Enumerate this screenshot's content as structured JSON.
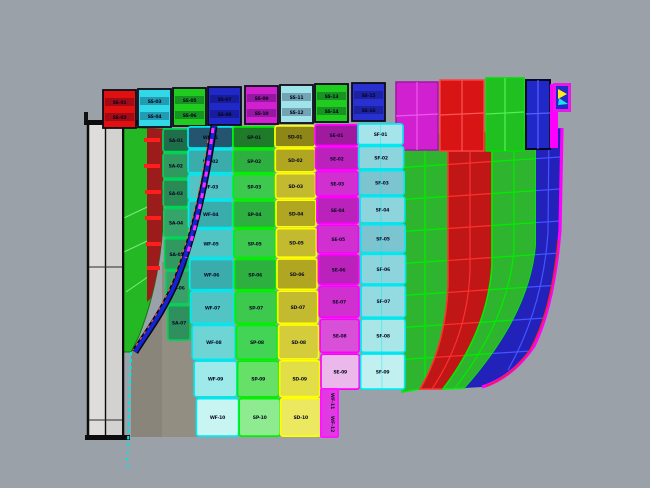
{
  "viewport": {
    "type": "3d-cad-shaded-viewport",
    "description": "3D shaded view of ship hull shell plating, color-coded strakes with plate ID labels",
    "background_color": "#9aa1a9"
  },
  "colors": {
    "background": "#9aa1a9",
    "shadow_dark": "#8a857b",
    "shadow_light": "#928e82",
    "keel_panel_fill": "#dedddb",
    "keel_panel_edge": "#0d0d0d",
    "stem_curve_blue": "#1424d2",
    "stem_curve_magenta": "#ff2cff",
    "stem_curve_orange": "#ff5a20",
    "waterline_cyan": "#00e4e4",
    "hull_edge_magenta": "#ff00ff",
    "hull_edge_red": "#ee2222",
    "label_text": "#0c0c24"
  },
  "top_band": {
    "blocks": [
      {
        "color": "#e01010",
        "labels": [
          "SS-01",
          "SS-02"
        ]
      },
      {
        "color": "#30d8e8",
        "labels": [
          "SS-03",
          "SS-04"
        ]
      },
      {
        "color": "#20cc20",
        "labels": [
          "SS-05",
          "SS-06"
        ]
      },
      {
        "color": "#2028c8",
        "labels": [
          "SS-07",
          "SS-08"
        ]
      },
      {
        "color": "#d020d0",
        "labels": [
          "SS-09",
          "SS-10"
        ]
      },
      {
        "color": "#a0e4ea",
        "labels": [
          "SS-11",
          "SS-12"
        ]
      },
      {
        "color": "#20cc20",
        "labels": [
          "SS-13",
          "SS-14"
        ]
      },
      {
        "color": "#2830d0",
        "labels": [
          "SS-15",
          "SS-16"
        ]
      }
    ],
    "grid_blocks": [
      {
        "color": "#d020d0",
        "line": "#ee55ee"
      },
      {
        "color": "#d81414",
        "line": "#ff5555"
      },
      {
        "color": "#20c020",
        "line": "#55ee55"
      },
      {
        "color": "#2028c8",
        "line": "#5560ff"
      }
    ]
  },
  "strakes": [
    {
      "id": "c1",
      "name": "strake-teal",
      "border": "#00d455",
      "fills": [
        "#1e6e4a",
        "#2f9960",
        "#2a8a56",
        "#35a468",
        "#2f9960",
        "#3aa06a",
        "#2f8f5f"
      ],
      "labels": [
        "SA-01",
        "SA-02",
        "SA-03",
        "SA-04",
        "SA-05",
        "SA-06",
        "SA-07"
      ]
    },
    {
      "id": "c2",
      "name": "strake-cyan",
      "border": "#00e8f0",
      "fills": [
        "#23566e",
        "#3aacac",
        "#52c4c4",
        "#3aacac",
        "#52c4c4",
        "#3aacac",
        "#52c4c4",
        "#6fd4d4",
        "#9ee9e9",
        "#c8f4f2"
      ],
      "labels": [
        "WF-01",
        "WF-02",
        "WF-03",
        "WF-04",
        "WF-05",
        "WF-06",
        "WF-07",
        "WF-08",
        "WF-09",
        "WF-10"
      ]
    },
    {
      "id": "c3",
      "name": "strake-green",
      "border": "#00f000",
      "fills": [
        "#1f7a2a",
        "#2eb040",
        "#3cc94e",
        "#2eb040",
        "#3cc94e",
        "#2eb040",
        "#3cc94e",
        "#44d455",
        "#66e066",
        "#8feb8f"
      ],
      "labels": [
        "SP-01",
        "SP-02",
        "SP-03",
        "SP-04",
        "SP-05",
        "SP-06",
        "SP-07",
        "SP-08",
        "SP-09",
        "SP-10"
      ]
    },
    {
      "id": "c4",
      "name": "strake-yellow",
      "border": "#ffff00",
      "fills": [
        "#8f8618",
        "#b0a622",
        "#c4ba30",
        "#b0a622",
        "#c4ba30",
        "#b0a622",
        "#c4ba30",
        "#d4cc3a",
        "#e2de48",
        "#ece860"
      ],
      "labels": [
        "SD-01",
        "SD-02",
        "SD-03",
        "SD-04",
        "SD-05",
        "SD-06",
        "SD-07",
        "SD-08",
        "SD-09",
        "SD-10"
      ]
    },
    {
      "id": "c5",
      "name": "strake-magenta",
      "border": "#ff00ff",
      "fills": [
        "#a01aa0",
        "#bb22bb",
        "#cf30cf",
        "#bb22bb",
        "#cf30cf",
        "#bb22bb",
        "#cf30cf",
        "#d84fd8",
        "#eab8ea"
      ],
      "labels": [
        "SE-01",
        "SE-02",
        "SE-03",
        "SE-04",
        "SE-05",
        "SE-06",
        "SE-07",
        "SE-08",
        "SE-09"
      ]
    },
    {
      "id": "c6",
      "name": "strake-lightcyan",
      "border": "#00e8f0",
      "fills": [
        "#a5e4ea",
        "#8ed4dc",
        "#7cc4d0",
        "#8ed4dc",
        "#7cc4d0",
        "#8ed4dc",
        "#93dbe0",
        "#a8e6e8",
        "#c2f0f0"
      ],
      "labels": [
        "SF-01",
        "SF-02",
        "SF-03",
        "SF-04",
        "SF-05",
        "SF-06",
        "SF-07",
        "SF-08",
        "SF-09"
      ]
    }
  ],
  "grid_strakes": [
    {
      "id": "g1",
      "name": "grid-strake-green-1",
      "color": "#2eb42e",
      "line": "#00ee00"
    },
    {
      "id": "g2",
      "name": "grid-strake-red",
      "color": "#c01616",
      "line": "#ff3030"
    },
    {
      "id": "g3",
      "name": "grid-strake-green-2",
      "color": "#2eb42e",
      "line": "#00ee00"
    },
    {
      "id": "g4",
      "name": "grid-strake-blue",
      "color": "#2222bb",
      "line": "#4455ff"
    }
  ],
  "side_tab": {
    "labels": [
      "WF-11",
      "WF-12"
    ],
    "color": "#e23ae2",
    "border": "#ff14ff"
  }
}
